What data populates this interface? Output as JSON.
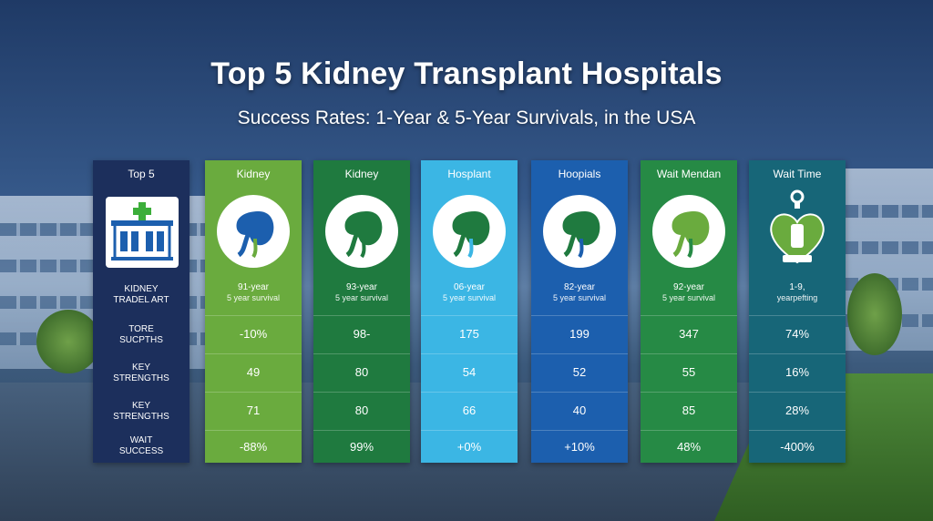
{
  "header": {
    "title": "Top 5 Kidney Transplant Hospitals",
    "subtitle": "Success Rates:  1-Year & 5-Year Survivals, in the USA"
  },
  "colors": {
    "col0": "#1c2f5c",
    "col1": "#6aab3e",
    "col2": "#1f7a3f",
    "col3": "#3bb6e4",
    "col4": "#1c5fae",
    "col5": "#268a45",
    "col6": "#176678"
  },
  "labels_column": {
    "heading": "Top 5",
    "icon": "hospital-icon",
    "rows": [
      {
        "line1": "KIDNEY",
        "line2": "TRADEL ART"
      },
      {
        "line1": "TORE",
        "line2": "SUCPTHS"
      },
      {
        "line1": "KEY",
        "line2": "STRENGTHS"
      },
      {
        "line1": "KEY",
        "line2": "STRENGTHS"
      },
      {
        "line1": "WAIT",
        "line2": "SUCCESS"
      }
    ]
  },
  "columns": [
    {
      "heading": "Kidney",
      "icon": "kidney-icon",
      "line1": "91-year",
      "line2": "5 year survival",
      "values": [
        "-10%",
        "49",
        "71",
        "-88%"
      ]
    },
    {
      "heading": "Kidney",
      "icon": "kidney-icon",
      "line1": "93-year",
      "line2": "5 year survival",
      "values": [
        "98-",
        "80",
        "80",
        "99%"
      ]
    },
    {
      "heading": "Hosplant",
      "icon": "kidney-icon",
      "line1": "06-year",
      "line2": "5 year survival",
      "values": [
        "175",
        "54",
        "66",
        "+0%"
      ]
    },
    {
      "heading": "Hoopials",
      "icon": "kidney-icon",
      "line1": "82-year",
      "line2": "5 year survival",
      "values": [
        "199",
        "52",
        "40",
        "+10%"
      ]
    },
    {
      "heading": "Wait Mendan",
      "icon": "kidney-icon",
      "line1": "92-year",
      "line2": "5 year survival",
      "values": [
        "347",
        "55",
        "85",
        "48%"
      ]
    },
    {
      "heading": "Wait Time",
      "icon": "heart-timer-icon",
      "line1": "1-9,",
      "line2": "yearpefting",
      "values": [
        "74%",
        "16%",
        "28%",
        "-400%"
      ]
    }
  ]
}
